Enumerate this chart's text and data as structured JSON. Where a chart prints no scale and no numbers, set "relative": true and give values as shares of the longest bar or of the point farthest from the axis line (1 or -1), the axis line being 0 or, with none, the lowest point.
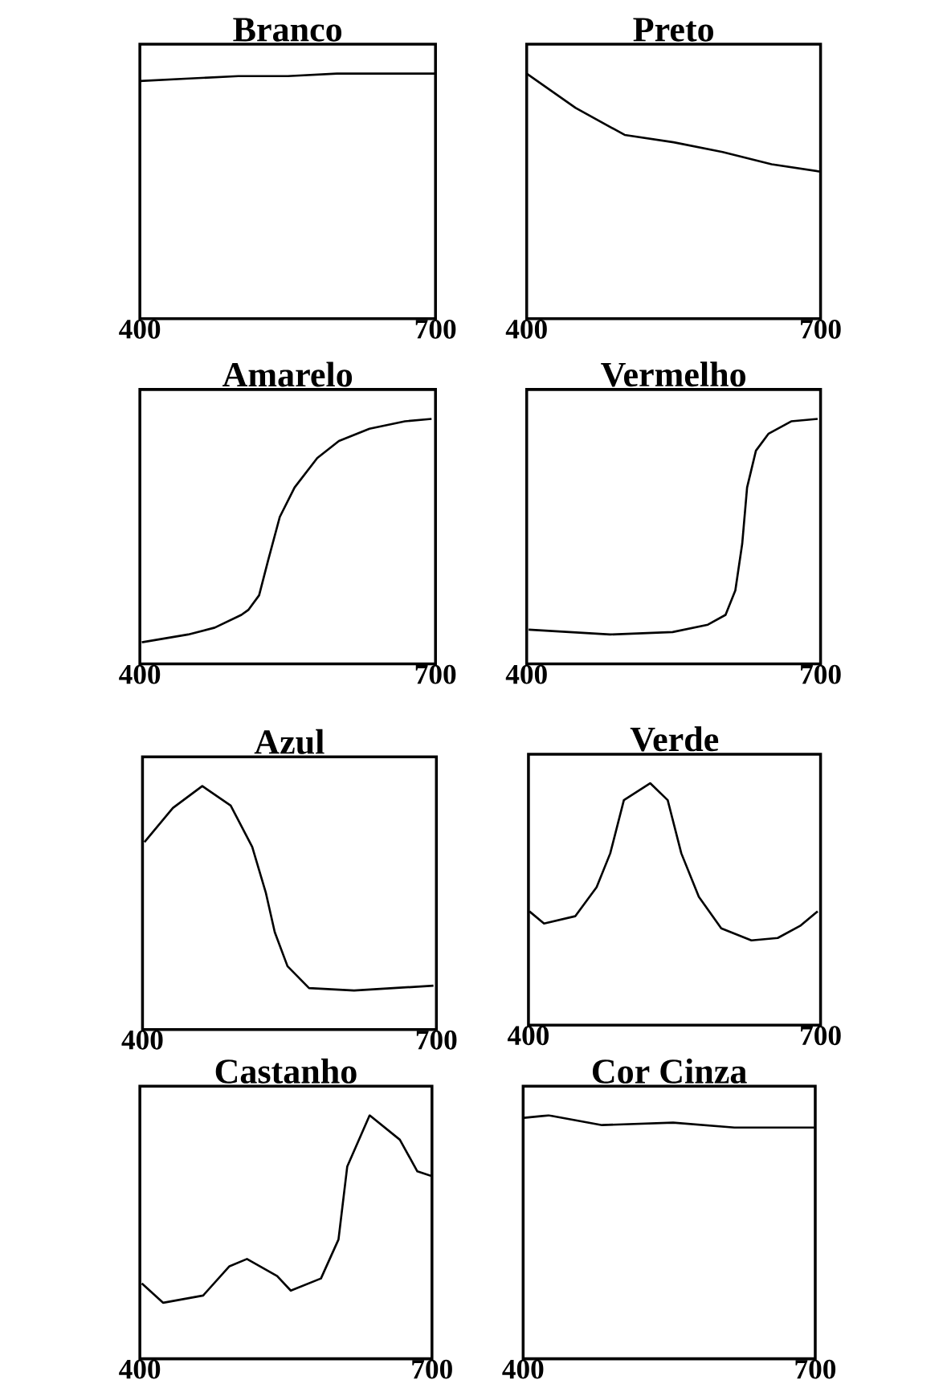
{
  "chart_data": [
    {
      "type": "line",
      "title": "Branco",
      "relative": true,
      "color": "#000000",
      "xlim": [
        400,
        700
      ],
      "xticks": [
        400,
        700
      ],
      "x": [
        400,
        450,
        500,
        550,
        600,
        650,
        700
      ],
      "values": [
        0.97,
        0.98,
        0.99,
        0.99,
        1,
        1,
        1.0
      ]
    },
    {
      "type": "line",
      "title": "Preto",
      "relative": true,
      "color": "#000000",
      "xlim": [
        400,
        700
      ],
      "xticks": [
        400,
        700
      ],
      "x": [
        400,
        450,
        500,
        550,
        600,
        650,
        700
      ],
      "values": [
        1,
        0.86,
        0.75,
        0.72,
        0.68,
        0.63,
        0.6
      ]
    },
    {
      "type": "line",
      "title": "Amarelo",
      "relative": true,
      "color": "#000000",
      "xlim": [
        400,
        700
      ],
      "xticks": [
        400,
        700
      ],
      "x": [
        402,
        449,
        476,
        503,
        510,
        521,
        530,
        542,
        557,
        580,
        602,
        633,
        669,
        696
      ],
      "values": [
        0.088,
        0.12,
        0.148,
        0.2,
        0.22,
        0.28,
        0.42,
        0.6,
        0.72,
        0.84,
        0.91,
        0.96,
        0.99,
        1
      ]
    },
    {
      "type": "line",
      "title": "Vermelho",
      "relative": true,
      "color": "#000000",
      "xlim": [
        400,
        700
      ],
      "xticks": [
        400,
        700
      ],
      "x": [
        402,
        485,
        549,
        585,
        603,
        613,
        620,
        625,
        634,
        647,
        670,
        697
      ],
      "values": [
        0.14,
        0.12,
        0.13,
        0.16,
        0.2,
        0.3,
        0.49,
        0.72,
        0.87,
        0.94,
        0.99,
        1
      ]
    },
    {
      "type": "line",
      "title": "Azul",
      "relative": true,
      "color": "#000000",
      "xlim": [
        400,
        700
      ],
      "xticks": [
        400,
        700
      ],
      "x": [
        402,
        431,
        461,
        490,
        512,
        526,
        535,
        548,
        570,
        616,
        697
      ],
      "values": [
        0.77,
        0.91,
        1,
        0.92,
        0.75,
        0.56,
        0.4,
        0.26,
        0.17,
        0.16,
        0.18
      ]
    },
    {
      "type": "line",
      "title": "Verde",
      "relative": true,
      "color": "#000000",
      "xlim": [
        400,
        700
      ],
      "xticks": [
        400,
        700
      ],
      "x": [
        401,
        416,
        448,
        470,
        484,
        498,
        525,
        543,
        557,
        575,
        598,
        629,
        656,
        679,
        697
      ],
      "values": [
        0.47,
        0.42,
        0.45,
        0.57,
        0.71,
        0.93,
        1,
        0.93,
        0.71,
        0.53,
        0.4,
        0.35,
        0.36,
        0.41,
        0.47
      ]
    },
    {
      "type": "line",
      "title": "Castanho",
      "relative": true,
      "color": "#000000",
      "xlim": [
        400,
        700
      ],
      "xticks": [
        400,
        700
      ],
      "x": [
        402,
        424,
        465,
        492,
        510,
        541,
        555,
        586,
        604,
        613,
        636,
        667,
        685,
        700
      ],
      "values": [
        0.31,
        0.23,
        0.26,
        0.38,
        0.41,
        0.34,
        0.28,
        0.33,
        0.49,
        0.79,
        1,
        0.9,
        0.77,
        0.75
      ]
    },
    {
      "type": "line",
      "title": "Cor Cinza",
      "relative": true,
      "color": "#000000",
      "xlim": [
        400,
        700
      ],
      "xticks": [
        400,
        700
      ],
      "x": [
        401,
        426,
        481,
        554,
        617,
        699
      ],
      "values": [
        0.99,
        1,
        0.96,
        0.97,
        0.95,
        0.95
      ]
    }
  ]
}
